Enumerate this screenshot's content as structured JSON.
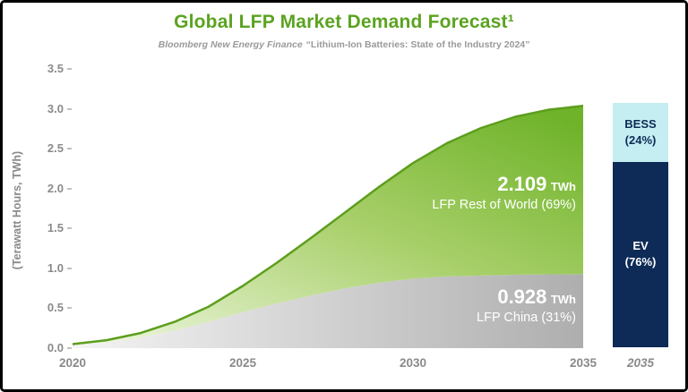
{
  "header": {
    "title": "Global LFP Market Demand Forecast¹",
    "subtitle_source": "Bloomberg New Energy Finance",
    "subtitle_quote": "“Lithium-Ion Batteries: State of the Industry 2024”"
  },
  "colors": {
    "title_green": "#5ba320",
    "area_green_light": "#e9f4d8",
    "area_green_dark": "#6fb32a",
    "area_green_line": "#5d9e1d",
    "area_gray_light": "#f4f4f4",
    "area_gray_dark": "#aeaeae",
    "axis_gray": "#8a8a8a",
    "bess_fill": "#c4eef2",
    "ev_fill": "#0e2a56"
  },
  "chart_data": {
    "type": "area",
    "stacked": true,
    "title": "Global LFP Market Demand Forecast",
    "source": "Bloomberg New Energy Finance “Lithium-Ion Batteries: State of the Industry 2024”",
    "ylabel": "(Terawatt Hours, TWh)",
    "ylim": [
      0,
      3.5
    ],
    "grid": false,
    "ytick_labels": [
      "3.5",
      "3.0",
      "2.5",
      "2.0",
      "1.5",
      "1.0",
      "0.5",
      "0.0"
    ],
    "xtick_labels": [
      "2020",
      "2025",
      "2030",
      "2035"
    ],
    "x": [
      2020,
      2021,
      2022,
      2023,
      2024,
      2025,
      2026,
      2027,
      2028,
      2029,
      2030,
      2031,
      2032,
      2033,
      2034,
      2035
    ],
    "series": [
      {
        "name": "LFP China",
        "share_label": "LFP China (31%)",
        "end_value_twh": 0.928,
        "values": [
          0.04,
          0.07,
          0.13,
          0.22,
          0.33,
          0.45,
          0.56,
          0.66,
          0.75,
          0.82,
          0.87,
          0.9,
          0.91,
          0.92,
          0.925,
          0.928
        ]
      },
      {
        "name": "LFP Rest of World",
        "share_label": "LFP Rest of World (69%)",
        "end_value_twh": 2.109,
        "values": [
          0.01,
          0.03,
          0.06,
          0.11,
          0.19,
          0.33,
          0.51,
          0.72,
          0.95,
          1.2,
          1.45,
          1.67,
          1.85,
          1.98,
          2.065,
          2.109
        ]
      }
    ],
    "annotations": [
      {
        "value": "2.109",
        "unit": "TWh",
        "label": "LFP Rest of World (69%)"
      },
      {
        "value": "0.928",
        "unit": "TWh",
        "label": "LFP China (31%)"
      }
    ]
  },
  "side_bar": {
    "x_label": "2035",
    "segments": [
      {
        "label": "BESS",
        "pct_label": "(24%)",
        "pct": 24,
        "color": "#c4eef2",
        "text_color": "#0e2a56"
      },
      {
        "label": "EV",
        "pct_label": "(76%)",
        "pct": 76,
        "color": "#0e2a56",
        "text_color": "#ffffff"
      }
    ]
  }
}
